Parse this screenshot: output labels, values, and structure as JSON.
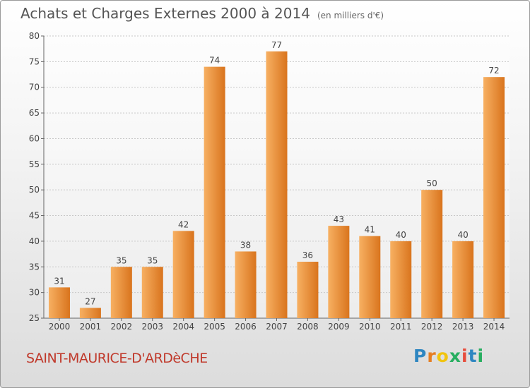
{
  "header": {
    "title": "Achats et Charges Externes 2000 à 2014",
    "subtitle": "(en milliers d'€)"
  },
  "footer": {
    "city": "SAINT-MAURICE-D'ARDèCHE",
    "logo_letters": [
      {
        "ch": "P",
        "color": "#2e86c1"
      },
      {
        "ch": "r",
        "color": "#e67e22"
      },
      {
        "ch": "o",
        "color": "#f1c40f"
      },
      {
        "ch": "x",
        "color": "#27ae60"
      },
      {
        "ch": "i",
        "color": "#e74c3c"
      },
      {
        "ch": "t",
        "color": "#2e86c1"
      },
      {
        "ch": "i",
        "color": "#27ae60"
      }
    ]
  },
  "colors": {
    "bar_light": "#f7b062",
    "bar_dark": "#d9741d",
    "grid": "#c8c8c8"
  },
  "chart_data": {
    "type": "bar",
    "title": "Achats et Charges Externes 2000 à 2014",
    "subtitle": "(en milliers d'€)",
    "categories": [
      "2000",
      "2001",
      "2002",
      "2003",
      "2004",
      "2005",
      "2006",
      "2007",
      "2008",
      "2009",
      "2010",
      "2011",
      "2012",
      "2013",
      "2014"
    ],
    "values": [
      31,
      27,
      35,
      35,
      42,
      74,
      38,
      77,
      36,
      43,
      41,
      40,
      50,
      40,
      72
    ],
    "ylim": [
      25,
      80
    ],
    "yticks": [
      25,
      30,
      35,
      40,
      45,
      50,
      55,
      60,
      65,
      70,
      75,
      80
    ],
    "grid": true,
    "xlabel": "",
    "ylabel": ""
  }
}
